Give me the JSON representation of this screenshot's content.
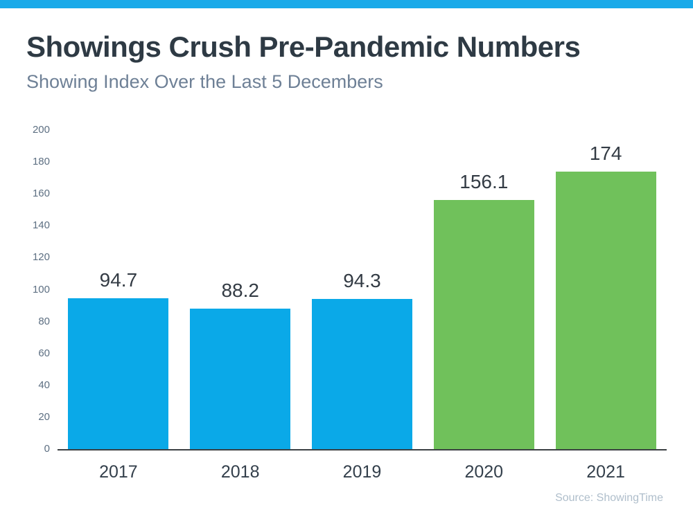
{
  "page": {
    "accent_color": "#19aae9"
  },
  "header": {
    "title": "Showings Crush Pre-Pandemic Numbers",
    "subtitle": "Showing Index Over the Last 5 Decembers"
  },
  "footer": {
    "source": "Source: ShowingTime"
  },
  "chart_data": {
    "type": "bar",
    "title": "Showings Crush Pre-Pandemic Numbers",
    "subtitle": "Showing Index Over the Last 5 Decembers",
    "categories": [
      "2017",
      "2018",
      "2019",
      "2020",
      "2021"
    ],
    "values": [
      94.7,
      88.2,
      94.3,
      156.1,
      174
    ],
    "value_labels": [
      "94.7",
      "88.2",
      "94.3",
      "156.1",
      "174"
    ],
    "bar_colors": [
      "#0aa9e8",
      "#0aa9e8",
      "#0aa9e8",
      "#70c15b",
      "#70c15b"
    ],
    "blue_color": "#0aa9e8",
    "green_color": "#70c15b",
    "ylim": [
      0,
      200
    ],
    "ytick_step": 20,
    "yticks": [
      0,
      20,
      40,
      60,
      80,
      100,
      120,
      140,
      160,
      180,
      200
    ],
    "grid": false,
    "legend": "none",
    "xlabel": "",
    "ylabel": "",
    "source": "Source: ShowingTime"
  }
}
